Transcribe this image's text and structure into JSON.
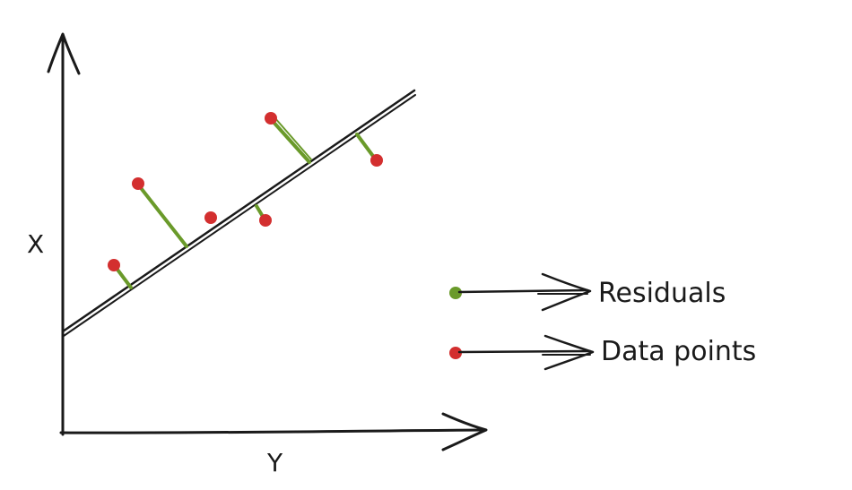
{
  "axes": {
    "vertical_label": "X",
    "horizontal_label": "Y"
  },
  "legend": {
    "items": [
      {
        "label": "Residuals",
        "color": "#6a9a2a"
      },
      {
        "label": "Data points",
        "color": "#d32f2f"
      }
    ]
  },
  "colors": {
    "stroke": "#1a1a1a",
    "residual": "#6a9a2a",
    "point": "#d32f2f"
  }
}
